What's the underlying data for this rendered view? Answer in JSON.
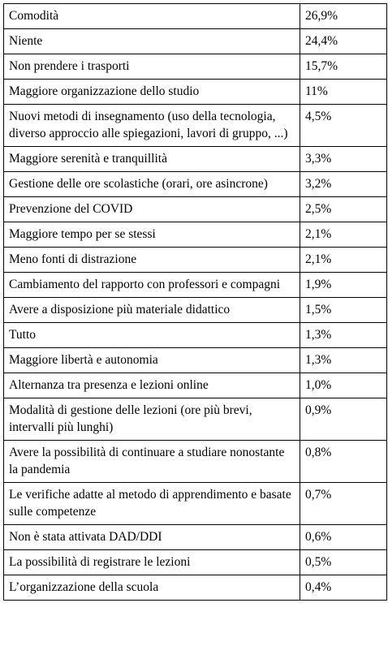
{
  "table": {
    "rows": [
      {
        "label": "Comodità",
        "value": "26,9%"
      },
      {
        "label": "Niente",
        "value": "24,4%"
      },
      {
        "label": "Non prendere i trasporti",
        "value": "15,7%"
      },
      {
        "label": "Maggiore organizzazione dello studio",
        "value": "11%"
      },
      {
        "label": "Nuovi metodi di insegnamento (uso della tecnologia, diverso approccio alle spiegazioni, lavori di gruppo, ...)",
        "value": "4,5%"
      },
      {
        "label": "Maggiore serenità e tranquillità",
        "value": "3,3%"
      },
      {
        "label": "Gestione delle ore scolastiche (orari, ore asincrone)",
        "value": "3,2%"
      },
      {
        "label": "Prevenzione del COVID",
        "value": "2,5%"
      },
      {
        "label": "Maggiore tempo per se stessi",
        "value": "2,1%"
      },
      {
        "label": "Meno fonti di distrazione",
        "value": "2,1%"
      },
      {
        "label": "Cambiamento del rapporto con professori e compagni",
        "value": "1,9%"
      },
      {
        "label": "Avere a disposizione più materiale didattico",
        "value": "1,5%"
      },
      {
        "label": "Tutto",
        "value": "1,3%"
      },
      {
        "label": "Maggiore libertà e autonomia",
        "value": "1,3%"
      },
      {
        "label": "Alternanza tra presenza e lezioni online",
        "value": "1,0%"
      },
      {
        "label": "Modalità di gestione delle lezioni (ore più brevi, intervalli più lunghi)",
        "value": "0,9%"
      },
      {
        "label": "Avere la possibilità di continuare a studiare nonostante la pandemia",
        "value": "0,8%"
      },
      {
        "label": "Le verifiche adatte al metodo di apprendimento e basate sulle competenze",
        "value": "0,7%"
      },
      {
        "label": "Non è stata attivata DAD/DDI",
        "value": "0,6%"
      },
      {
        "label": "La possibilità di registrare le lezioni",
        "value": "0,5%"
      },
      {
        "label": "L’organizzazione della scuola",
        "value": "0,4%"
      }
    ]
  }
}
